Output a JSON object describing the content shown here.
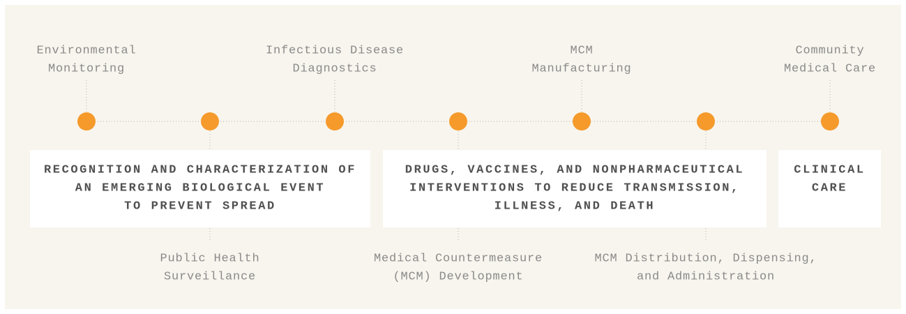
{
  "nodes": [
    {
      "label": [
        "Environmental",
        "Monitoring"
      ],
      "side": "top"
    },
    {
      "label": [
        "Public Health",
        "Surveillance"
      ],
      "side": "bottom"
    },
    {
      "label": [
        "Infectious Disease",
        "Diagnostics"
      ],
      "side": "top"
    },
    {
      "label": [
        "Medical Countermeasure",
        "(MCM) Development"
      ],
      "side": "bottom"
    },
    {
      "label": [
        "MCM",
        "Manufacturing"
      ],
      "side": "top"
    },
    {
      "label": [
        "MCM Distribution, Dispensing,",
        "and Administration"
      ],
      "side": "bottom"
    },
    {
      "label": [
        "Community",
        "Medical Care"
      ],
      "side": "top"
    }
  ],
  "boxes": [
    {
      "lines": [
        "RECOGNITION AND CHARACTERIZATION OF",
        "AN EMERGING BIOLOGICAL EVENT",
        "TO PREVENT SPREAD"
      ]
    },
    {
      "lines": [
        "DRUGS, VACCINES, AND NONPHARMACEUTICAL",
        "INTERVENTIONS TO REDUCE TRANSMISSION,",
        "ILLNESS, AND DEATH"
      ]
    },
    {
      "lines": [
        "CLINICAL",
        "CARE"
      ]
    }
  ]
}
